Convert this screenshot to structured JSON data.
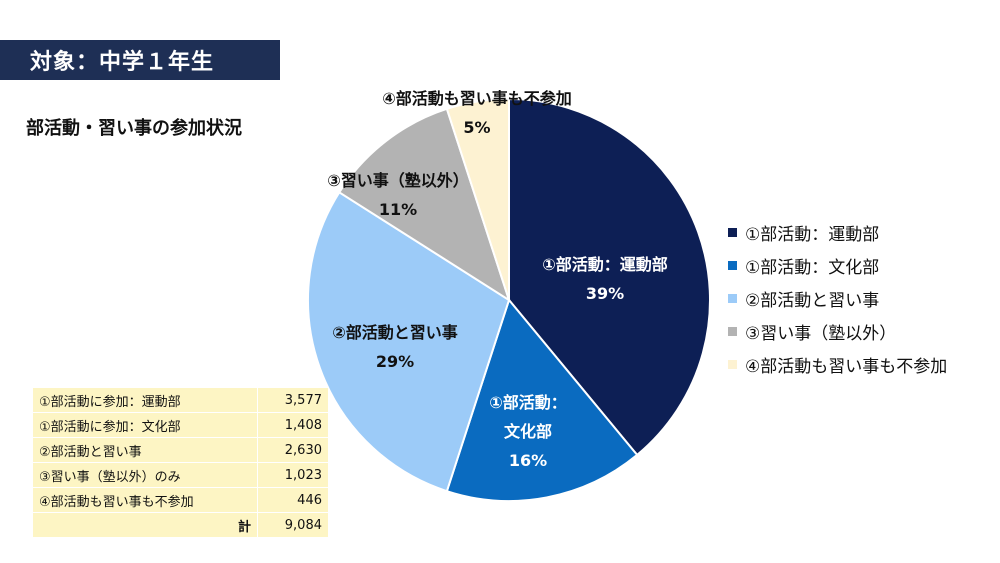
{
  "header": {
    "title": "対象：中学１年生"
  },
  "subtitle": "部活動・習い事の参加状況",
  "chart_data": {
    "type": "pie",
    "categories": [
      "①部活動：運動部",
      "①部活動：文化部",
      "②部活動と習い事",
      "③習い事（塾以外）",
      "④部活動も習い事も不参加"
    ],
    "values": [
      39,
      16,
      29,
      11,
      5
    ],
    "slice_labels": [
      {
        "lines": [
          "①部活動：運動部",
          "39%"
        ],
        "color": "#ffffff"
      },
      {
        "lines": [
          "①部活動：",
          "文化部",
          "16%"
        ],
        "color": "#ffffff"
      },
      {
        "lines": [
          "②部活動と習い事",
          "29%"
        ],
        "color": "#111111"
      },
      {
        "lines": [
          "③習い事（塾以外）",
          "11%"
        ],
        "color": "#111111"
      },
      {
        "lines": [
          "④部活動も習い事も不参加",
          "5%"
        ],
        "color": "#111111"
      }
    ],
    "colors": [
      "#0d1f55",
      "#0a6bc0",
      "#9ccbf8",
      "#b3b3b3",
      "#fdf2d2"
    ],
    "legend_position": "right"
  },
  "legend": [
    {
      "label": "①部活動：運動部",
      "color": "#0d1f55"
    },
    {
      "label": "①部活動：文化部",
      "color": "#0a6bc0"
    },
    {
      "label": "②部活動と習い事",
      "color": "#9ccbf8"
    },
    {
      "label": "③習い事（塾以外）",
      "color": "#b3b3b3"
    },
    {
      "label": "④部活動も習い事も不参加",
      "color": "#fdf2d2"
    }
  ],
  "table": {
    "rows": [
      {
        "label": "①部活動に参加：運動部",
        "value": "3,577"
      },
      {
        "label": "①部活動に参加：文化部",
        "value": "1,408"
      },
      {
        "label": "②部活動と習い事",
        "value": "2,630"
      },
      {
        "label": "③習い事（塾以外）のみ",
        "value": "1,023"
      },
      {
        "label": "④部活動も習い事も不参加",
        "value": "446"
      }
    ],
    "total_label": "計",
    "total_value": "9,084"
  }
}
